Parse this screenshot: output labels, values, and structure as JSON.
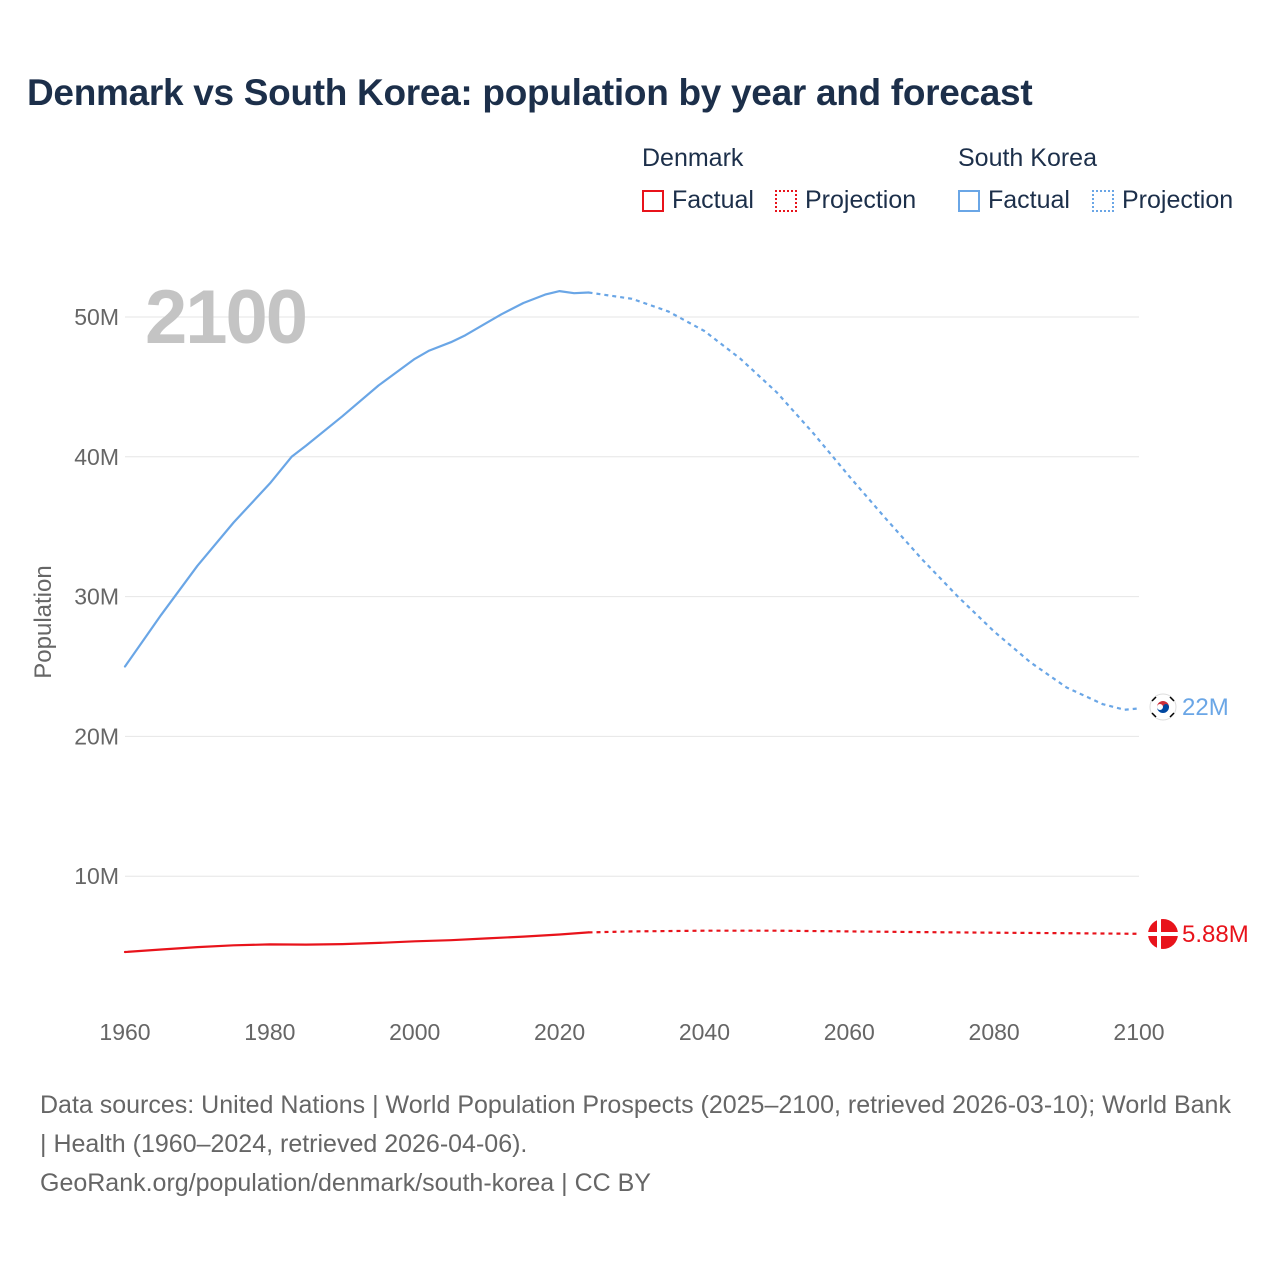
{
  "title": "Denmark vs South Korea: population by year and forecast",
  "legend": {
    "groups": [
      {
        "name": "Denmark",
        "color": "#e8131b",
        "factual_label": "Factual",
        "projection_label": "Projection"
      },
      {
        "name": "South Korea",
        "color": "#6aa6e6",
        "factual_label": "Factual",
        "projection_label": "Projection"
      }
    ]
  },
  "footer": {
    "sources": "Data sources: United Nations | World Population Prospects (2025–2100, retrieved 2026-03-10); World Bank | Health (1960–2024, retrieved 2026-04-06).",
    "credit": "GeoRank.org/population/denmark/south-korea | CC BY"
  },
  "chart_data": {
    "type": "line",
    "title": "Denmark vs South Korea: population by year and forecast",
    "ylabel": "Population",
    "xlabel": "",
    "current_year_label": "2100",
    "xlim": [
      1960,
      2100
    ],
    "ylim": [
      0,
      55000000
    ],
    "x_ticks": [
      1960,
      1980,
      2000,
      2020,
      2040,
      2060,
      2080,
      2100
    ],
    "x_tick_labels": [
      "1960",
      "1980",
      "2000",
      "2020",
      "2040",
      "2060",
      "2080",
      "2100"
    ],
    "y_ticks": [
      10000000,
      20000000,
      30000000,
      40000000,
      50000000
    ],
    "y_tick_labels": [
      "10M",
      "20M",
      "30M",
      "40M",
      "50M"
    ],
    "grid": true,
    "series": [
      {
        "name": "South Korea",
        "color": "#6aa6e6",
        "end_label": "22M",
        "factual": {
          "x": [
            1960,
            1965,
            1970,
            1975,
            1980,
            1983,
            1985,
            1990,
            1995,
            2000,
            2002,
            2005,
            2007,
            2010,
            2012,
            2015,
            2018,
            2020,
            2022,
            2024
          ],
          "y": [
            25000000,
            28700000,
            32200000,
            35300000,
            38100000,
            40000000,
            40800000,
            42900000,
            45100000,
            47000000,
            47600000,
            48200000,
            48700000,
            49600000,
            50200000,
            51000000,
            51600000,
            51850000,
            51700000,
            51750000
          ]
        },
        "projection": {
          "x": [
            2024,
            2030,
            2035,
            2040,
            2045,
            2050,
            2055,
            2060,
            2065,
            2070,
            2075,
            2080,
            2085,
            2090,
            2095,
            2098,
            2100
          ],
          "y": [
            51750000,
            51300000,
            50400000,
            49000000,
            47000000,
            44600000,
            41700000,
            38600000,
            35600000,
            32700000,
            30000000,
            27500000,
            25300000,
            23500000,
            22300000,
            21900000,
            22000000
          ]
        }
      },
      {
        "name": "Denmark",
        "color": "#e8131b",
        "end_label": "5.88M",
        "factual": {
          "x": [
            1960,
            1965,
            1970,
            1975,
            1980,
            1985,
            1990,
            1995,
            2000,
            2005,
            2010,
            2015,
            2020,
            2024
          ],
          "y": [
            4580000,
            4760000,
            4930000,
            5060000,
            5120000,
            5110000,
            5140000,
            5230000,
            5340000,
            5420000,
            5550000,
            5680000,
            5830000,
            5980000
          ]
        },
        "projection": {
          "x": [
            2024,
            2030,
            2040,
            2050,
            2060,
            2070,
            2080,
            2090,
            2100
          ],
          "y": [
            5980000,
            6050000,
            6100000,
            6100000,
            6050000,
            6000000,
            5960000,
            5920000,
            5880000
          ]
        }
      }
    ]
  }
}
